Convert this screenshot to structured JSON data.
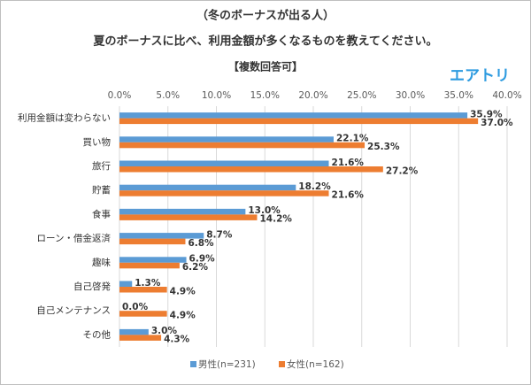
{
  "chart_data": {
    "type": "hbar",
    "title": "（冬のボーナスが出る人）",
    "subtitle": "夏のボーナスに比べ、利用金額が多くなるものを教えてください。",
    "note": "【複数回答可】",
    "logo": "エアトリ",
    "categories": [
      "利用金額は変わらない",
      "買い物",
      "旅行",
      "貯蓄",
      "食事",
      "ローン・借金返済",
      "趣味",
      "自己啓発",
      "自己メンテナンス",
      "その他"
    ],
    "series": [
      {
        "name": "男性(n=231)",
        "color": "#5b9bd5",
        "values": [
          35.9,
          22.1,
          21.6,
          18.2,
          13.0,
          8.7,
          6.9,
          1.3,
          0.0,
          3.0
        ],
        "value_labels": [
          "35.9%",
          "22.1%",
          "21.6%",
          "18.2%",
          "13.0%",
          "8.7%",
          "6.9%",
          "1.3%",
          "0.0%",
          "3.0%"
        ]
      },
      {
        "name": "女性(n=162)",
        "color": "#ed7d31",
        "values": [
          37.0,
          25.3,
          27.2,
          21.6,
          14.2,
          6.8,
          6.2,
          4.9,
          4.9,
          4.3
        ],
        "value_labels": [
          "37.0%",
          "25.3%",
          "27.2%",
          "21.6%",
          "14.2%",
          "6.8%",
          "6.2%",
          "4.9%",
          "4.9%",
          "4.3%"
        ]
      }
    ],
    "xlim": [
      0,
      40
    ],
    "xticks": [
      {
        "value": 0,
        "label": "0.0%"
      },
      {
        "value": 5,
        "label": "5.0%"
      },
      {
        "value": 10,
        "label": "10.0%"
      },
      {
        "value": 15,
        "label": "15.0%"
      },
      {
        "value": 20,
        "label": "20.0%"
      },
      {
        "value": 25,
        "label": "25.0%"
      },
      {
        "value": 30,
        "label": "30.0%"
      },
      {
        "value": 35,
        "label": "35.0%"
      },
      {
        "value": 40,
        "label": "40.0%"
      }
    ],
    "grid": true,
    "legend": "bottom"
  }
}
